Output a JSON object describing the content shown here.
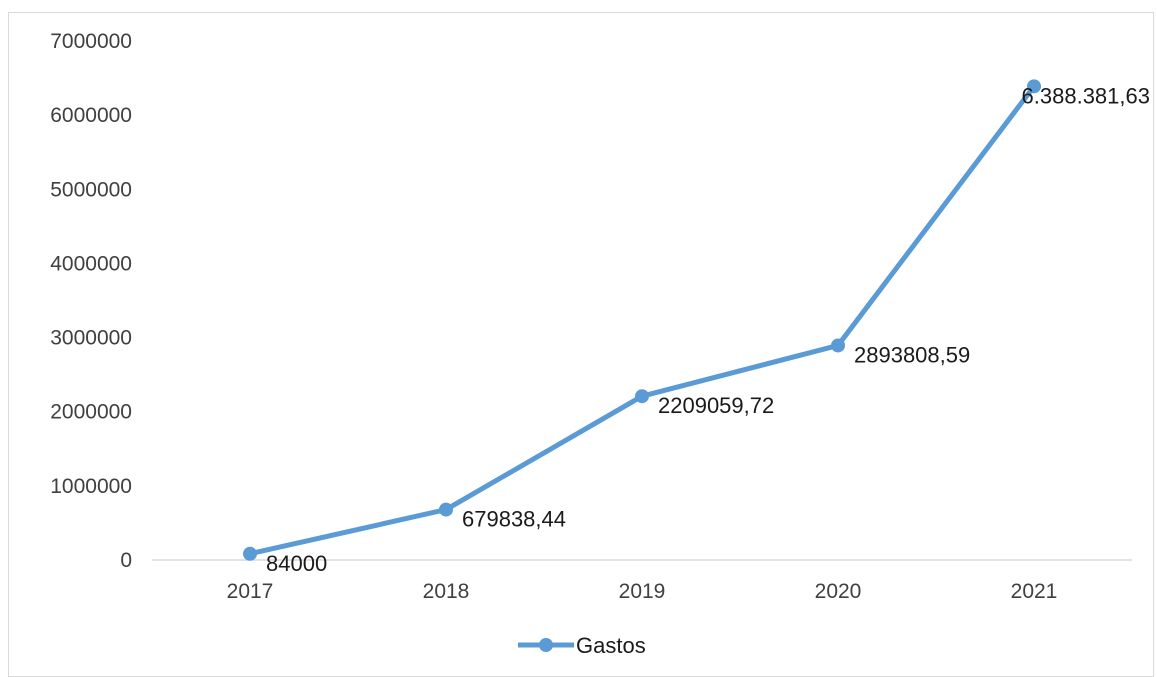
{
  "chart_data": {
    "type": "line",
    "title": "",
    "xlabel": "",
    "ylabel": "",
    "categories": [
      "2017",
      "2018",
      "2019",
      "2020",
      "2021"
    ],
    "series": [
      {
        "name": "Gastos",
        "values": [
          84000,
          679838.44,
          2209059.72,
          2893808.59,
          6388381.63
        ],
        "labels": [
          "84000",
          "679838,44",
          "2209059,72",
          "2893808,59",
          "6.388.381,63"
        ],
        "color": "#5b9bd5"
      }
    ],
    "ylim": [
      0,
      7000000
    ],
    "yticks": [
      "0",
      "1000000",
      "2000000",
      "3000000",
      "4000000",
      "5000000",
      "6000000",
      "7000000"
    ],
    "grid": false,
    "legend": "bottom-center",
    "axis_color": "#d9d9d9"
  }
}
